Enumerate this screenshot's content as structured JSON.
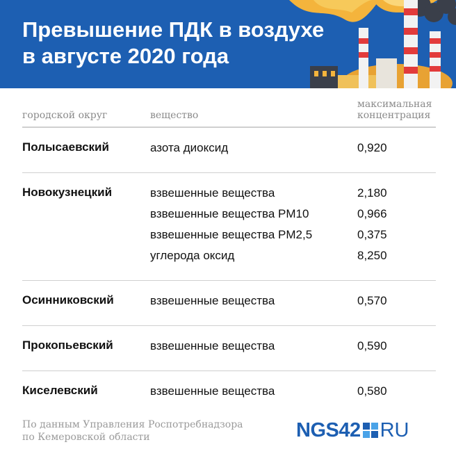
{
  "header": {
    "title_line1": "Превышение ПДК в воздухе",
    "title_line2": "в августе 2020 года",
    "bg_color": "#1d5fb2"
  },
  "table": {
    "columns": [
      "городской округ",
      "вещество",
      "максимальная",
      "концентрация"
    ],
    "rows": [
      {
        "district": "Полысаевский",
        "items": [
          {
            "substance": "азота диоксид",
            "value": "0,920"
          }
        ]
      },
      {
        "district": "Новокузнецкий",
        "items": [
          {
            "substance": "взвешенные вещества",
            "value": "2,180"
          },
          {
            "substance": "взвешенные вещества PM10",
            "value": "0,966"
          },
          {
            "substance": "взвешенные вещества PM2,5",
            "value": "0,375"
          },
          {
            "substance": "углерода оксид",
            "value": "8,250"
          }
        ]
      },
      {
        "district": "Осинниковский",
        "items": [
          {
            "substance": "взвешенные вещества",
            "value": "0,570"
          }
        ]
      },
      {
        "district": "Прокопьевский",
        "items": [
          {
            "substance": "взвешенные вещества",
            "value": "0,590"
          }
        ]
      },
      {
        "district": "Киселевский",
        "items": [
          {
            "substance": "взвешенные вещества",
            "value": "0,580"
          }
        ]
      }
    ]
  },
  "footer": {
    "line1": "По данным Управления Роспотребнадзора",
    "line2": "по Кемеровской области"
  },
  "logo": {
    "left": "NGS42",
    "right": "RU",
    "icon": "ngs-square-icon"
  }
}
